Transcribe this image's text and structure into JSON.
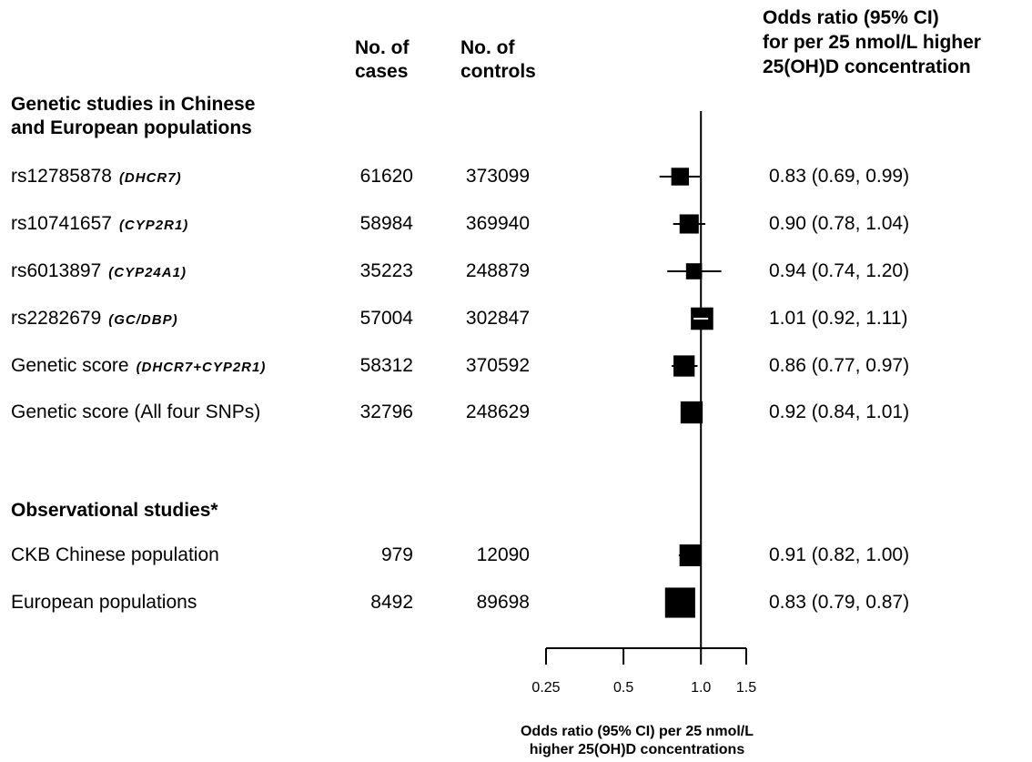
{
  "headers": {
    "cases": "No. of cases",
    "cases_l1": "No. of",
    "cases_l2": "cases",
    "controls_l1": "No. of",
    "controls_l2": "controls",
    "or_l1": "Odds ratio (95% CI)",
    "or_l2": "for per 25 nmol/L higher",
    "or_l3": "25(OH)D concentration"
  },
  "sections": {
    "genetic_l1": "Genetic studies in Chinese",
    "genetic_l2": "and European populations",
    "observational": "Observational studies*"
  },
  "rows": [
    {
      "label": "rs12785878",
      "gene": "(DHCR7)",
      "cases": "61620",
      "controls": "373099",
      "ci_text": "0.83 (0.69, 0.99)"
    },
    {
      "label": "rs10741657",
      "gene": "(CYP2R1)",
      "cases": "58984",
      "controls": "369940",
      "ci_text": "0.90 (0.78, 1.04)"
    },
    {
      "label": "rs6013897",
      "gene": "(CYP24A1)",
      "cases": "35223",
      "controls": "248879",
      "ci_text": "0.94 (0.74, 1.20)"
    },
    {
      "label": "rs2282679",
      "gene": "(GC/DBP)",
      "cases": "57004",
      "controls": "302847",
      "ci_text": "1.01 (0.92, 1.11)"
    },
    {
      "label": "Genetic score",
      "gene": "(DHCR7+CYP2R1)",
      "cases": "58312",
      "controls": "370592",
      "ci_text": "0.86 (0.77, 0.97)"
    },
    {
      "label": "Genetic score (All four SNPs)",
      "gene": "",
      "cases": "32796",
      "controls": "248629",
      "ci_text": "0.92 (0.84, 1.01)"
    },
    {
      "label": "CKB Chinese population",
      "gene": "",
      "cases": "979",
      "controls": "12090",
      "ci_text": "0.91 (0.82, 1.00)"
    },
    {
      "label": "European populations",
      "gene": "",
      "cases": "8492",
      "controls": "89698",
      "ci_text": "0.83 (0.79, 0.87)"
    }
  ],
  "chart_data": {
    "type": "forest",
    "x_scale": "log",
    "xlim": [
      0.25,
      1.5
    ],
    "x_ticks": [
      0.25,
      0.5,
      1.0,
      1.5
    ],
    "x_tick_labels": [
      "0.25",
      "0.5",
      "1.0",
      "1.5"
    ],
    "reference_line": 1.0,
    "xlabel_l1": "Odds ratio (95% CI) per 25 nmol/L",
    "xlabel_l2": "higher 25(OH)D concentrations",
    "estimates": [
      {
        "or": 0.83,
        "lo": 0.69,
        "hi": 0.99,
        "weight": 0.45
      },
      {
        "or": 0.9,
        "lo": 0.78,
        "hi": 1.04,
        "weight": 0.55
      },
      {
        "or": 0.94,
        "lo": 0.74,
        "hi": 1.2,
        "weight": 0.35
      },
      {
        "or": 1.01,
        "lo": 0.92,
        "hi": 1.11,
        "weight": 0.8
      },
      {
        "or": 0.86,
        "lo": 0.77,
        "hi": 0.97,
        "weight": 0.7
      },
      {
        "or": 0.92,
        "lo": 0.84,
        "hi": 1.01,
        "weight": 0.78
      },
      {
        "or": 0.91,
        "lo": 0.82,
        "hi": 1.0,
        "weight": 0.75
      },
      {
        "or": 0.83,
        "lo": 0.79,
        "hi": 0.87,
        "weight": 1.6
      }
    ]
  }
}
